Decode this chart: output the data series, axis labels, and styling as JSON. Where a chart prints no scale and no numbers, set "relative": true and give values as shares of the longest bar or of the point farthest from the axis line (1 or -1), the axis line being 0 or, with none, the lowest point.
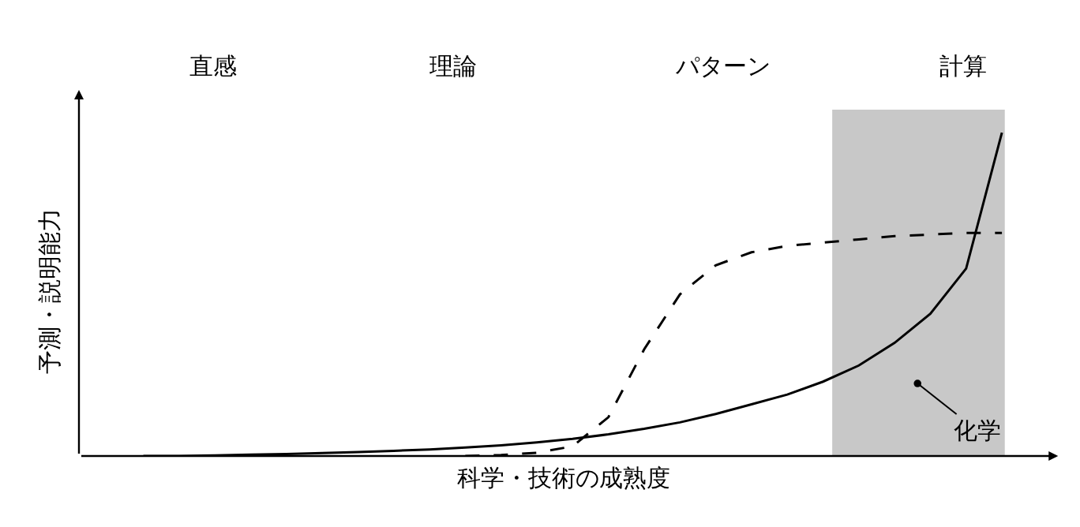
{
  "chart_data": {
    "type": "line",
    "relative": true,
    "xlabel": "科学・技術の成熟度",
    "ylabel": "予測・説明能力",
    "categories": [
      null,
      null,
      null,
      null,
      null,
      null,
      null,
      null,
      null,
      null,
      null,
      null,
      null,
      null,
      null,
      null,
      null,
      null,
      null,
      null,
      null,
      null,
      null,
      null,
      null
    ],
    "series": [
      {
        "color": "#000000",
        "line_style": "solid",
        "values": [
          0,
          0,
          0.002,
          0.004,
          0.006,
          0.009,
          0.012,
          0.016,
          0.02,
          0.026,
          0.033,
          0.042,
          0.053,
          0.067,
          0.084,
          0.104,
          0.13,
          0.16,
          0.19,
          0.23,
          0.28,
          0.35,
          0.44,
          0.58,
          1
        ]
      },
      {
        "color": "#000000",
        "line_style": "dashed",
        "values": [
          null,
          null,
          null,
          null,
          null,
          null,
          null,
          null,
          null,
          0,
          0.003,
          0.01,
          0.03,
          0.12,
          0.33,
          0.5,
          0.59,
          0.63,
          0.65,
          0.66,
          0.67,
          0.68,
          0.685,
          0.69,
          0.69
        ]
      }
    ],
    "annotations": [
      "直感",
      "理論",
      "パターン",
      "計算",
      "化学"
    ]
  }
}
